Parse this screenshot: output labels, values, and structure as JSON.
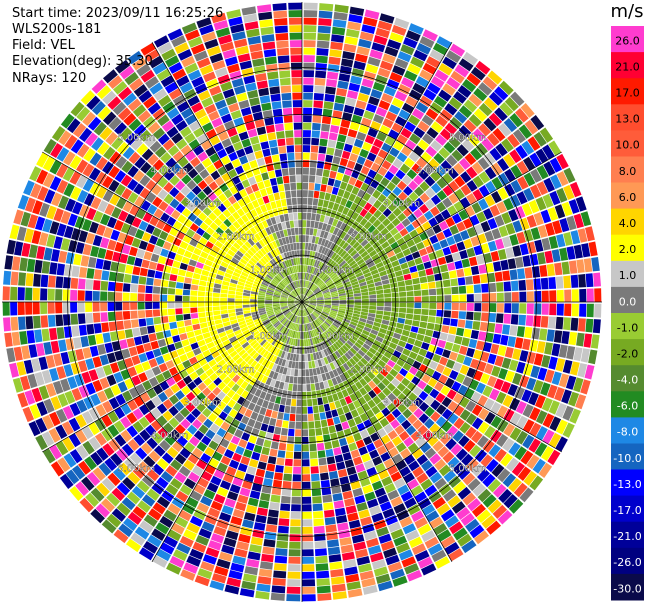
{
  "info": {
    "start_time": "Start time: 2023/09/11 16:25:26",
    "instrument": "WLS200s-181",
    "field": "Field: VEL",
    "elevation": "Elevation(deg): 35.30",
    "nrays": "NRays: 120"
  },
  "chart_data": {
    "type": "heatmap",
    "projection": "polar-ppi",
    "n_rays": 120,
    "n_gates": 40,
    "max_range_km": 6.4,
    "range_rings_km": [
      1,
      2,
      3,
      4,
      5
    ],
    "range_ring_labels": [
      "1.00km",
      "2.00km",
      "3.00km",
      "4.00km",
      "5.00km"
    ],
    "regions": [
      {
        "range_km": [
          0,
          1.0
        ],
        "dominant_value": -2.0,
        "note": "green core with gray"
      },
      {
        "range_km": [
          1.0,
          2.0
        ],
        "west_sector_value": 2.0,
        "east_sector_value": -2.0,
        "center_gray_value": 0.0
      },
      {
        "range_km": [
          2.0,
          3.2
        ],
        "mix": "noisy, mostly yellow west, green east"
      },
      {
        "range_km": [
          3.2,
          6.4
        ],
        "mix": "random noise across full colour range"
      }
    ],
    "colorbar": {
      "unit": "m/s",
      "tick_labels": [
        "26.0",
        "21.0",
        "17.0",
        "13.0",
        "10.0",
        "8.0",
        "6.0",
        "4.0",
        "2.0",
        "1.0",
        "0.0",
        "-1.0",
        "-2.0",
        "-4.0",
        "-6.0",
        "-8.0",
        "-10.0",
        "-13.0",
        "-17.0",
        "-21.0",
        "-26.0",
        "-30.0"
      ],
      "colors": [
        "#ff3ccf",
        "#ff0033",
        "#ff1a00",
        "#ff4d2e",
        "#ff5c3a",
        "#ff7f50",
        "#ff9955",
        "#ffd500",
        "#ffff00",
        "#c7c7c7",
        "#7a7a7a",
        "#99cc33",
        "#77aa22",
        "#558b2f",
        "#228b22",
        "#1e88e5",
        "#1565c0",
        "#0000ff",
        "#0000cc",
        "#000099",
        "#000080",
        "#0a0a4a"
      ]
    }
  }
}
